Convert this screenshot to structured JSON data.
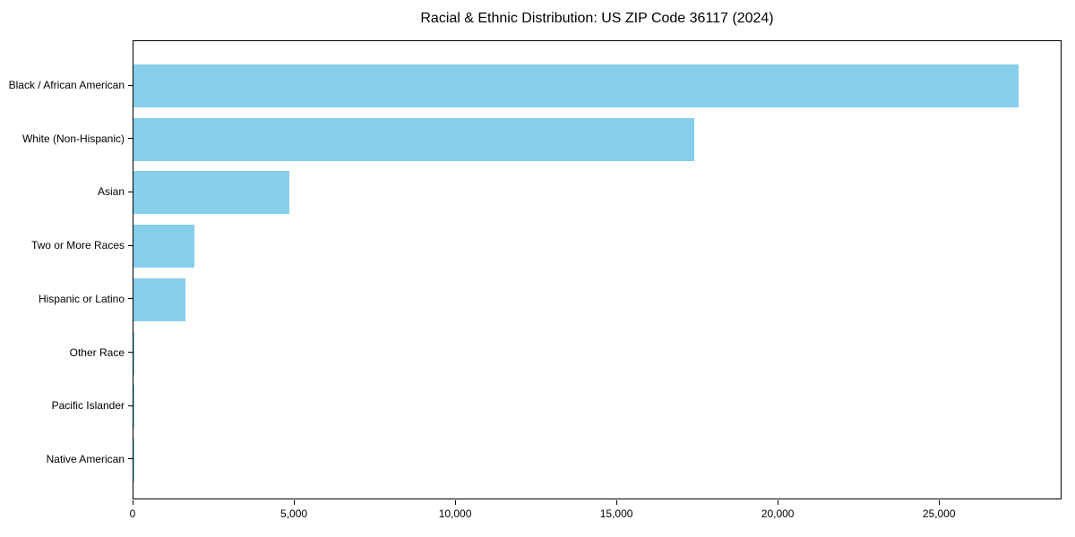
{
  "chart_data": {
    "type": "bar",
    "orientation": "horizontal",
    "title": "Racial & Ethnic Distribution: US ZIP Code 36117 (2024)",
    "categories": [
      "Black / African American",
      "White (Non-Hispanic)",
      "Asian",
      "Two or More Races",
      "Hispanic or Latino",
      "Other Race",
      "Pacific Islander",
      "Native American"
    ],
    "values": [
      27450,
      17380,
      4820,
      1880,
      1600,
      40,
      15,
      10
    ],
    "bar_color": "#87CEEB",
    "xlabel": "",
    "ylabel": "",
    "xlim": [
      0,
      28800
    ],
    "xticks": {
      "values": [
        0,
        5000,
        10000,
        15000,
        20000,
        25000
      ],
      "labels": [
        "0",
        "5,000",
        "10,000",
        "15,000",
        "20,000",
        "25,000"
      ]
    },
    "grid": false
  }
}
